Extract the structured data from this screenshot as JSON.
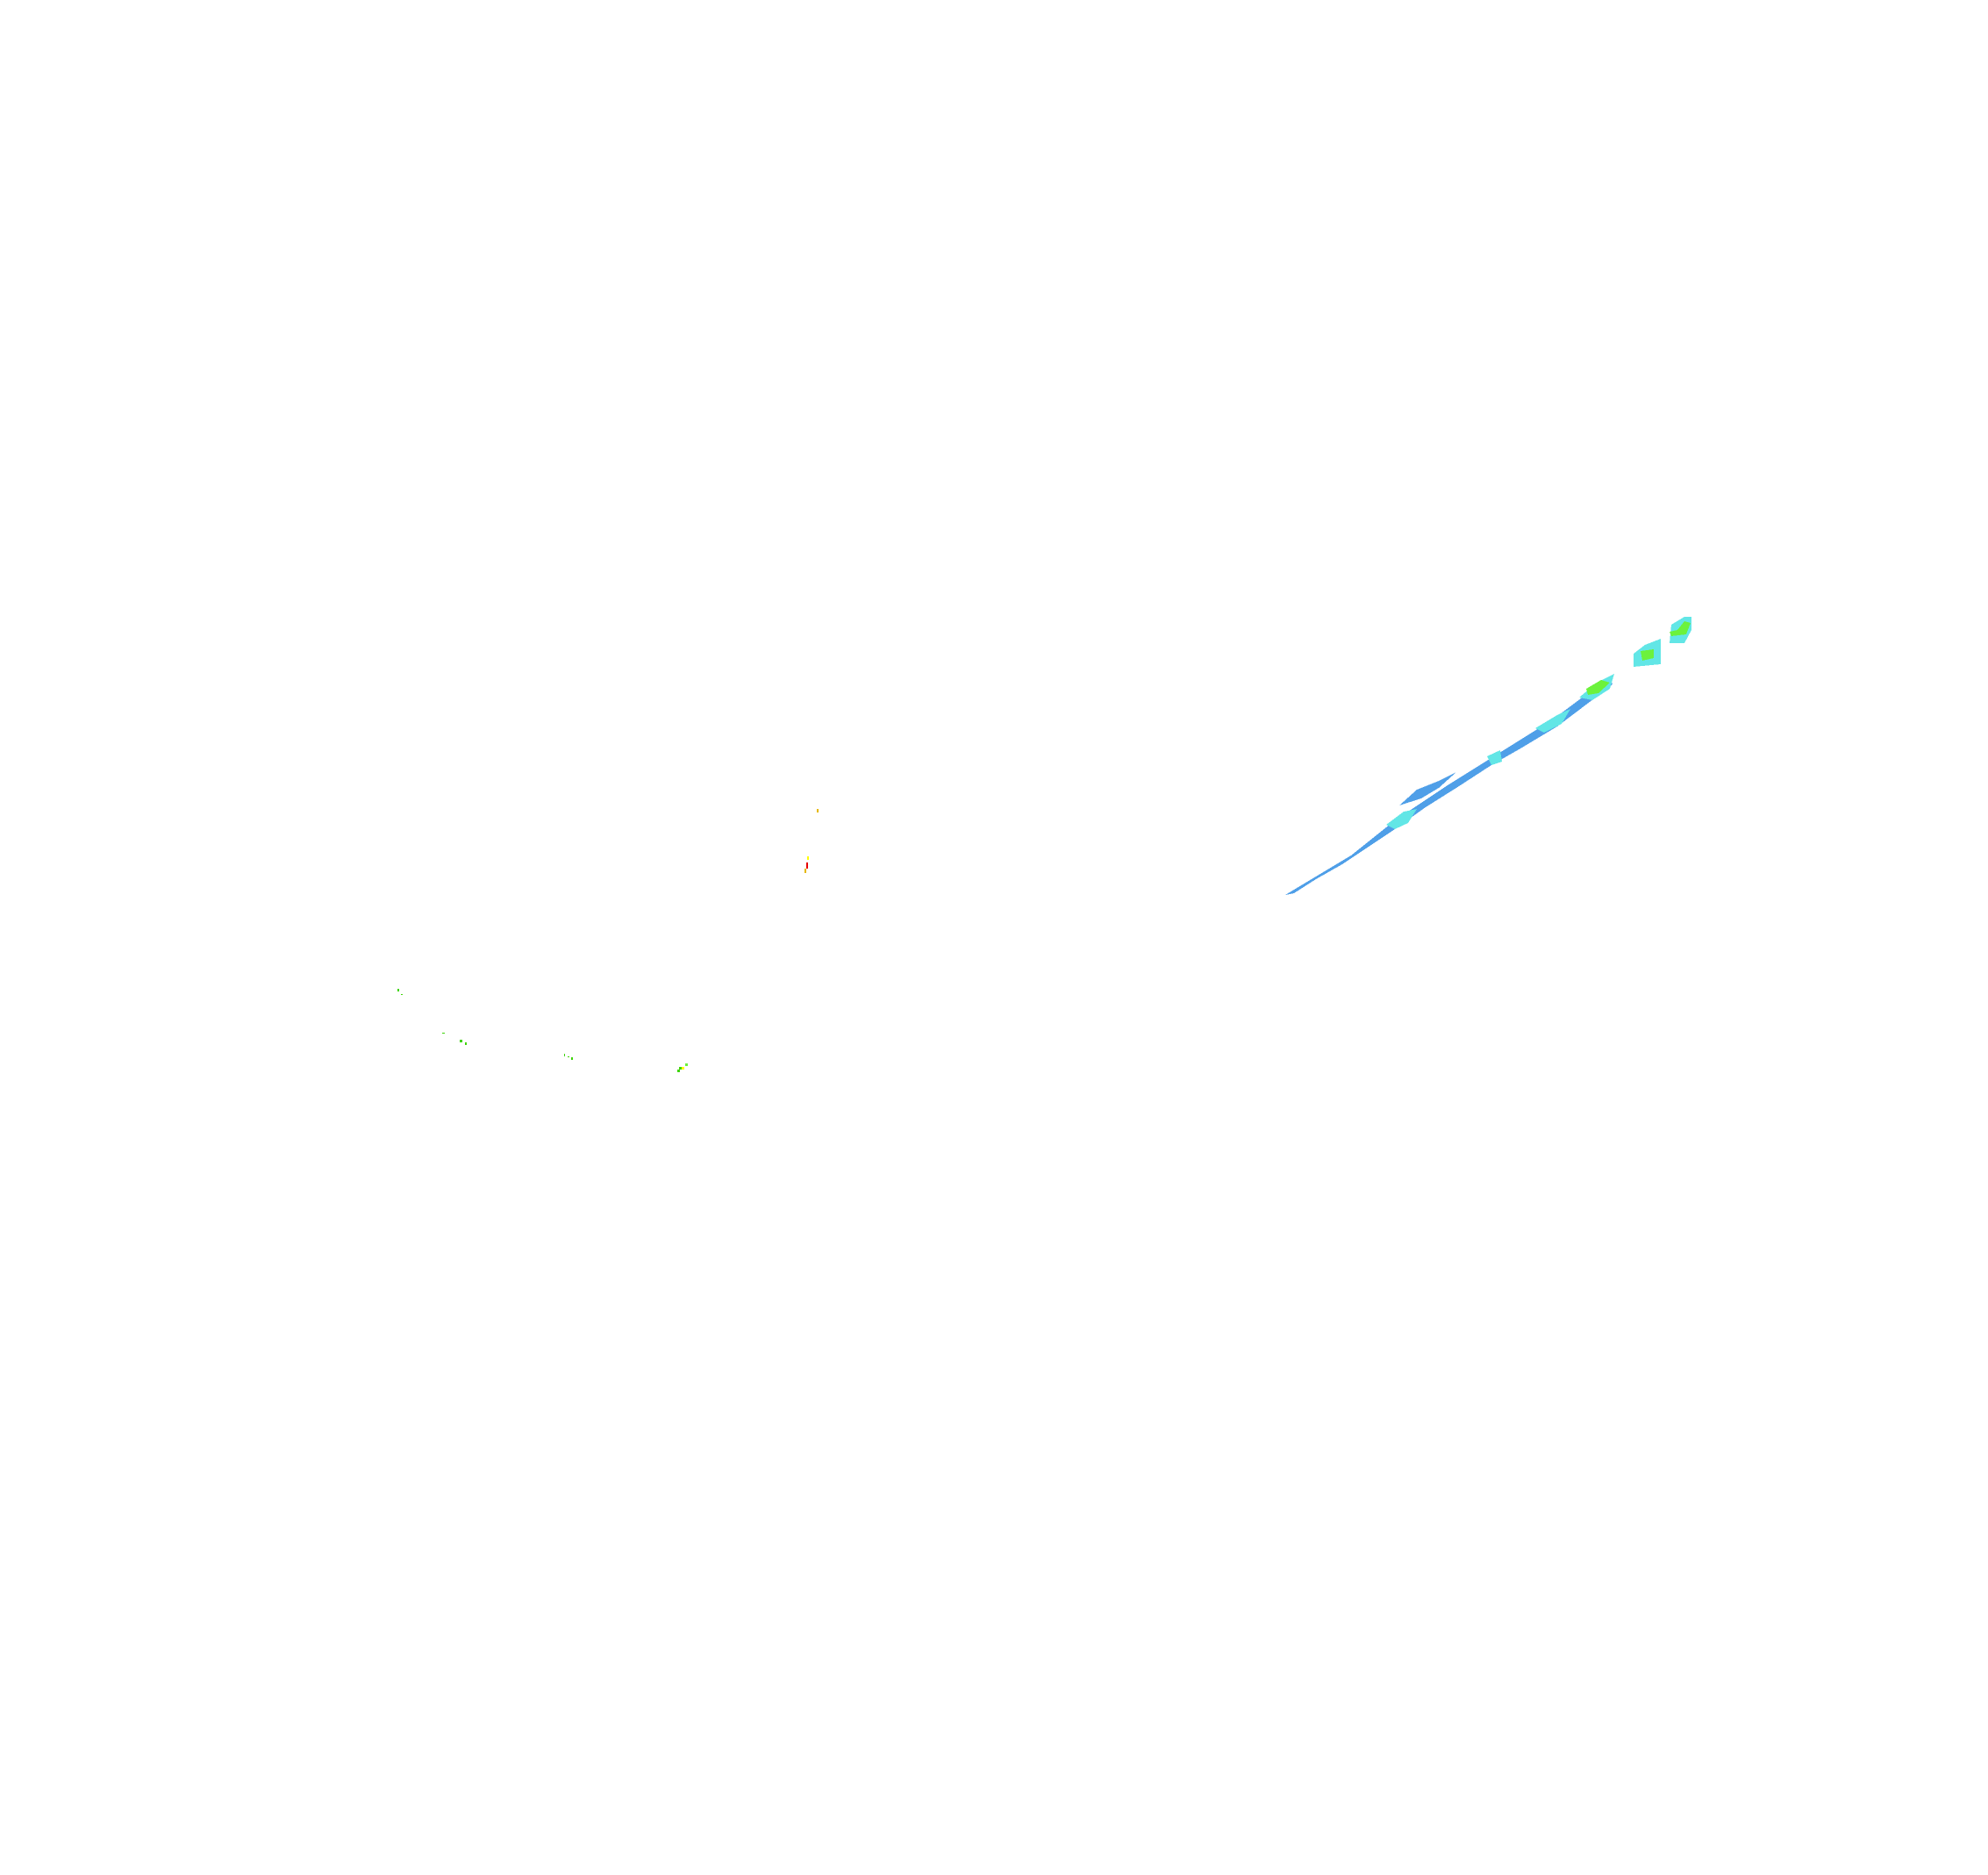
{
  "map": {
    "background": "#ffffff",
    "colors": {
      "light_rain": "#4f9fe8",
      "moderate_rain": "#62e6e6",
      "heavy_rain": "#6cf23c",
      "green_cell": "#3fd40a",
      "yellow_cell": "#ffff00",
      "orange_cell": "#e6b800",
      "red_cell": "#e60000"
    }
  }
}
